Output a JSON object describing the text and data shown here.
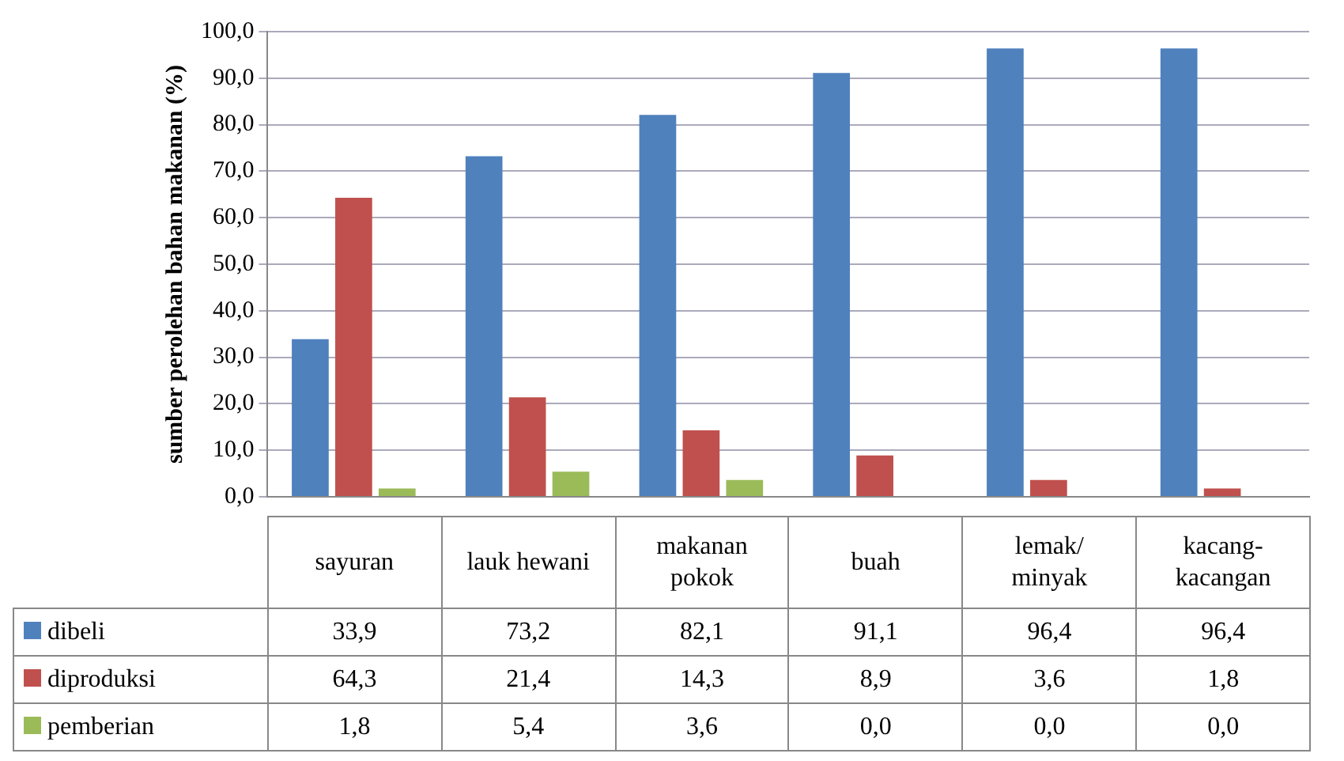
{
  "chart_data": {
    "type": "bar",
    "ylabel": "sumber perolehan bahan makanan (%)",
    "categories": [
      "sayuran",
      "lauk hewani",
      "makanan pokok",
      "buah",
      "lemak/ minyak",
      "kacang-kacangan"
    ],
    "series": [
      {
        "name": "dibeli",
        "color": "#4f81bd",
        "values": [
          33.9,
          73.2,
          82.1,
          91.1,
          96.4,
          96.4
        ],
        "value_labels": [
          "33,9",
          "73,2",
          "82,1",
          "91,1",
          "96,4",
          "96,4"
        ]
      },
      {
        "name": "diproduksi",
        "color": "#c0504d",
        "values": [
          64.3,
          21.4,
          14.3,
          8.9,
          3.6,
          1.8
        ],
        "value_labels": [
          "64,3",
          "21,4",
          "14,3",
          "8,9",
          "3,6",
          "1,8"
        ]
      },
      {
        "name": "pemberian",
        "color": "#9bbb59",
        "values": [
          1.8,
          5.4,
          3.6,
          0.0,
          0.0,
          0.0
        ],
        "value_labels": [
          "1,8",
          "5,4",
          "3,6",
          "0,0",
          "0,0",
          "0,0"
        ]
      }
    ],
    "ylim": [
      0,
      100
    ],
    "yticks": [
      {
        "value": 0,
        "label": "0,0"
      },
      {
        "value": 10,
        "label": "10,0"
      },
      {
        "value": 20,
        "label": "20,0"
      },
      {
        "value": 30,
        "label": "30,0"
      },
      {
        "value": 40,
        "label": "40,0"
      },
      {
        "value": 50,
        "label": "50,0"
      },
      {
        "value": 60,
        "label": "60,0"
      },
      {
        "value": 70,
        "label": "70,0"
      },
      {
        "value": 80,
        "label": "80,0"
      },
      {
        "value": 90,
        "label": "90,0"
      },
      {
        "value": 100,
        "label": "100,0"
      }
    ],
    "grid": "y",
    "legend": "bottom"
  }
}
